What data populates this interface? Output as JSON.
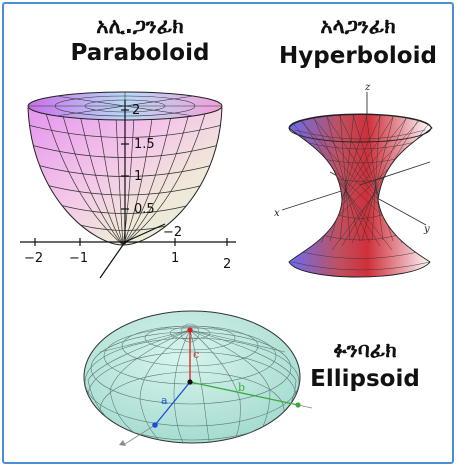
{
  "panels": {
    "paraboloid": {
      "amharic": "አሊ.ጋንፊክ",
      "english": "Paraboloid",
      "x_ticks": [
        "−2",
        "−1",
        "1",
        "2"
      ],
      "z_ticks": [
        "2",
        "1.5",
        "1",
        "0.5"
      ],
      "y_tick": "−2",
      "colors": {
        "top_left": "#c870e8",
        "top_right": "#f0a0d8",
        "bottom": "#e8f4e0"
      }
    },
    "hyperboloid": {
      "amharic": "አላጋንፊክ",
      "english": "Hyperboloid",
      "axes": {
        "z": "z",
        "x": "x",
        "y": "y"
      },
      "colors": {
        "neck": "#d0303a",
        "left": "#6a6cf0",
        "right": "#ffffff"
      }
    },
    "ellipsoid": {
      "amharic": "ፉንባፊክ",
      "english": "Ellipsoid",
      "semi_axes": {
        "a": "a",
        "b": "b",
        "c": "c"
      },
      "colors": {
        "fill": "#bfe9e0",
        "a_axis": "#1a4fd8",
        "b_axis": "#3aaa3a",
        "c_axis": "#d82020"
      }
    }
  }
}
